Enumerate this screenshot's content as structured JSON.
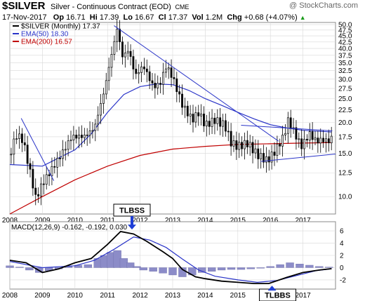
{
  "header": {
    "symbol": "$SILVER",
    "subtitle": "Silver - Continuous Contract (EOD)",
    "exchange": "CME",
    "credit": "@ StockCharts.com",
    "date": "17-Nov-2017",
    "open_label": "Op",
    "open": "16.71",
    "high_label": "Hi",
    "high": "17.39",
    "low_label": "Lo",
    "low": "16.67",
    "close_label": "Cl",
    "close": "17.37",
    "volume_label": "Vol",
    "volume": "1.2M",
    "change_label": "Chg",
    "change": "+0.68 (+4.07%)",
    "change_arrow": "▲"
  },
  "colors": {
    "price": "#000000",
    "ema50": "#2a34c8",
    "ema200": "#c00000",
    "trendline": "#2a34c8",
    "histogram": "#8c8cc8",
    "callout_box": "#ffffff",
    "callout_arrow": "#1f3fd6"
  },
  "chart_data": [
    {
      "type": "candlestick",
      "legend": [
        {
          "label": "$SILVER (Monthly) 17.37",
          "color": "#000000"
        },
        {
          "label": "EMA(50) 18.30",
          "color": "#2a34c8"
        },
        {
          "label": "EMA(200) 16.57",
          "color": "#c00000"
        }
      ],
      "legend_position": "top-left",
      "y_axis": "log",
      "ylim": [
        8.5,
        51
      ],
      "y_ticks": [
        "50.0",
        "47.5",
        "45.0",
        "42.5",
        "40.0",
        "37.5",
        "35.0",
        "32.5",
        "30.0",
        "27.5",
        "25.0",
        "22.5",
        "20.0",
        "17.5",
        "15.0",
        "12.5",
        "10.0"
      ],
      "x_ticks": [
        "2008",
        "2009",
        "2010",
        "2011",
        "2012",
        "2013",
        "2014",
        "2015",
        "2016",
        "2017"
      ],
      "xlim": [
        2008.0,
        2018.0
      ],
      "grid": true,
      "price_points": [
        {
          "x": 2008.0,
          "y": 14.8
        },
        {
          "x": 2008.2,
          "y": 17.8
        },
        {
          "x": 2008.4,
          "y": 17.0
        },
        {
          "x": 2008.6,
          "y": 13.0
        },
        {
          "x": 2008.8,
          "y": 9.8
        },
        {
          "x": 2009.0,
          "y": 11.3
        },
        {
          "x": 2009.3,
          "y": 13.0
        },
        {
          "x": 2009.6,
          "y": 15.0
        },
        {
          "x": 2009.9,
          "y": 17.5
        },
        {
          "x": 2010.3,
          "y": 17.6
        },
        {
          "x": 2010.6,
          "y": 19.0
        },
        {
          "x": 2010.9,
          "y": 27.0
        },
        {
          "x": 2011.05,
          "y": 34.0
        },
        {
          "x": 2011.3,
          "y": 48.6
        },
        {
          "x": 2011.45,
          "y": 37.0
        },
        {
          "x": 2011.65,
          "y": 39.5
        },
        {
          "x": 2011.85,
          "y": 31.0
        },
        {
          "x": 2012.1,
          "y": 34.0
        },
        {
          "x": 2012.4,
          "y": 28.0
        },
        {
          "x": 2012.6,
          "y": 28.5
        },
        {
          "x": 2012.8,
          "y": 34.0
        },
        {
          "x": 2013.0,
          "y": 30.5
        },
        {
          "x": 2013.3,
          "y": 23.5
        },
        {
          "x": 2013.6,
          "y": 20.5
        },
        {
          "x": 2013.8,
          "y": 22.0
        },
        {
          "x": 2014.0,
          "y": 19.5
        },
        {
          "x": 2014.3,
          "y": 20.5
        },
        {
          "x": 2014.6,
          "y": 19.5
        },
        {
          "x": 2014.8,
          "y": 16.5
        },
        {
          "x": 2015.0,
          "y": 16.0
        },
        {
          "x": 2015.3,
          "y": 16.5
        },
        {
          "x": 2015.6,
          "y": 14.8
        },
        {
          "x": 2015.9,
          "y": 14.0
        },
        {
          "x": 2016.1,
          "y": 15.0
        },
        {
          "x": 2016.4,
          "y": 17.5
        },
        {
          "x": 2016.55,
          "y": 20.5
        },
        {
          "x": 2016.8,
          "y": 17.5
        },
        {
          "x": 2016.95,
          "y": 16.0
        },
        {
          "x": 2017.2,
          "y": 18.0
        },
        {
          "x": 2017.4,
          "y": 16.8
        },
        {
          "x": 2017.6,
          "y": 17.0
        },
        {
          "x": 2017.8,
          "y": 16.8
        },
        {
          "x": 2017.88,
          "y": 17.37
        }
      ],
      "ema50_points": [
        {
          "x": 2008.0,
          "y": 13.5
        },
        {
          "x": 2009.0,
          "y": 13.3
        },
        {
          "x": 2010.0,
          "y": 15.5
        },
        {
          "x": 2010.5,
          "y": 18.0
        },
        {
          "x": 2011.0,
          "y": 22.0
        },
        {
          "x": 2011.5,
          "y": 26.0
        },
        {
          "x": 2012.0,
          "y": 28.0
        },
        {
          "x": 2012.5,
          "y": 28.7
        },
        {
          "x": 2013.0,
          "y": 28.5
        },
        {
          "x": 2013.5,
          "y": 27.0
        },
        {
          "x": 2014.0,
          "y": 25.0
        },
        {
          "x": 2014.5,
          "y": 23.5
        },
        {
          "x": 2015.0,
          "y": 22.0
        },
        {
          "x": 2015.5,
          "y": 20.7
        },
        {
          "x": 2016.0,
          "y": 19.6
        },
        {
          "x": 2016.5,
          "y": 19.0
        },
        {
          "x": 2017.0,
          "y": 18.6
        },
        {
          "x": 2017.88,
          "y": 18.3
        }
      ],
      "ema200_points": [
        {
          "x": 2008.0,
          "y": 8.5
        },
        {
          "x": 2009.0,
          "y": 10.0
        },
        {
          "x": 2010.0,
          "y": 11.7
        },
        {
          "x": 2011.0,
          "y": 13.3
        },
        {
          "x": 2012.0,
          "y": 14.7
        },
        {
          "x": 2013.0,
          "y": 15.6
        },
        {
          "x": 2014.0,
          "y": 16.0
        },
        {
          "x": 2015.0,
          "y": 16.3
        },
        {
          "x": 2016.0,
          "y": 16.4
        },
        {
          "x": 2017.0,
          "y": 16.5
        },
        {
          "x": 2017.88,
          "y": 16.57
        }
      ],
      "trendlines": [
        {
          "from": {
            "x": 2008.35,
            "y": 20.8
          },
          "to": {
            "x": 2009.35,
            "y": 11.6
          }
        },
        {
          "from": {
            "x": 2011.2,
            "y": 49.5
          },
          "to": {
            "x": 2016.25,
            "y": 16.8
          }
        },
        {
          "from": {
            "x": 2015.1,
            "y": 19.5
          },
          "to": {
            "x": 2017.9,
            "y": 18.5
          }
        },
        {
          "from": {
            "x": 2015.7,
            "y": 13.9
          },
          "to": {
            "x": 2018.0,
            "y": 14.9
          }
        }
      ]
    },
    {
      "type": "line",
      "title": "MACD(12,26,9) -0.162, -0.192, 0.030",
      "legend_position": "top-left",
      "ylim": [
        -3.5,
        7.5
      ],
      "y_ticks": [
        "6",
        "4",
        "2",
        "0",
        "-2"
      ],
      "x_ticks": [
        "2008",
        "2009",
        "2010",
        "2011",
        "2012",
        "2013",
        "2014",
        "2015",
        "2016",
        "2017"
      ],
      "xlim": [
        2008.0,
        2018.0
      ],
      "grid": true,
      "series": [
        {
          "points": [
            {
              "x": 2008.0,
              "y": 1.2
            },
            {
              "x": 2008.5,
              "y": 0.8
            },
            {
              "x": 2009.0,
              "y": -0.8
            },
            {
              "x": 2009.5,
              "y": -0.2
            },
            {
              "x": 2010.0,
              "y": 0.8
            },
            {
              "x": 2010.5,
              "y": 1.5
            },
            {
              "x": 2011.0,
              "y": 3.8
            },
            {
              "x": 2011.4,
              "y": 5.9
            },
            {
              "x": 2011.8,
              "y": 5.5
            },
            {
              "x": 2012.2,
              "y": 4.3
            },
            {
              "x": 2012.7,
              "y": 2.6
            },
            {
              "x": 2013.0,
              "y": 1.5
            },
            {
              "x": 2013.3,
              "y": -0.3
            },
            {
              "x": 2013.7,
              "y": -1.5
            },
            {
              "x": 2014.0,
              "y": -1.8
            },
            {
              "x": 2014.5,
              "y": -2.2
            },
            {
              "x": 2015.0,
              "y": -2.4
            },
            {
              "x": 2015.5,
              "y": -2.6
            },
            {
              "x": 2015.95,
              "y": -2.6
            },
            {
              "x": 2016.5,
              "y": -1.6
            },
            {
              "x": 2017.0,
              "y": -0.8
            },
            {
              "x": 2017.5,
              "y": -0.4
            },
            {
              "x": 2017.88,
              "y": -0.162
            }
          ]
        },
        {
          "points": [
            {
              "x": 2008.0,
              "y": 1.0
            },
            {
              "x": 2009.0,
              "y": 0.0
            },
            {
              "x": 2010.0,
              "y": 0.3
            },
            {
              "x": 2010.6,
              "y": 1.2
            },
            {
              "x": 2011.2,
              "y": 3.0
            },
            {
              "x": 2011.8,
              "y": 5.0
            },
            {
              "x": 2012.3,
              "y": 4.5
            },
            {
              "x": 2012.8,
              "y": 3.3
            },
            {
              "x": 2013.3,
              "y": 1.4
            },
            {
              "x": 2013.8,
              "y": -0.4
            },
            {
              "x": 2014.3,
              "y": -1.4
            },
            {
              "x": 2015.0,
              "y": -2.0
            },
            {
              "x": 2015.6,
              "y": -2.4
            },
            {
              "x": 2016.2,
              "y": -2.1
            },
            {
              "x": 2016.8,
              "y": -1.3
            },
            {
              "x": 2017.4,
              "y": -0.5
            },
            {
              "x": 2017.88,
              "y": -0.192
            }
          ]
        }
      ],
      "histogram": [
        {
          "x": 2008.0,
          "y": 0.3
        },
        {
          "x": 2008.3,
          "y": 0.1
        },
        {
          "x": 2008.6,
          "y": -0.4
        },
        {
          "x": 2008.9,
          "y": -0.8
        },
        {
          "x": 2009.2,
          "y": -0.5
        },
        {
          "x": 2009.5,
          "y": -0.2
        },
        {
          "x": 2009.8,
          "y": 0.3
        },
        {
          "x": 2010.1,
          "y": 0.4
        },
        {
          "x": 2010.4,
          "y": 0.5
        },
        {
          "x": 2010.7,
          "y": 1.5
        },
        {
          "x": 2010.9,
          "y": 2.0
        },
        {
          "x": 2011.1,
          "y": 2.5
        },
        {
          "x": 2011.3,
          "y": 2.8
        },
        {
          "x": 2011.5,
          "y": 1.5
        },
        {
          "x": 2011.7,
          "y": 0.8
        },
        {
          "x": 2011.9,
          "y": 0.2
        },
        {
          "x": 2012.1,
          "y": -0.4
        },
        {
          "x": 2012.4,
          "y": -0.6
        },
        {
          "x": 2012.7,
          "y": -0.9
        },
        {
          "x": 2013.0,
          "y": -1.2
        },
        {
          "x": 2013.3,
          "y": -1.5
        },
        {
          "x": 2013.6,
          "y": -1.2
        },
        {
          "x": 2013.9,
          "y": -0.8
        },
        {
          "x": 2014.2,
          "y": -0.6
        },
        {
          "x": 2014.5,
          "y": -0.4
        },
        {
          "x": 2014.8,
          "y": -0.3
        },
        {
          "x": 2015.1,
          "y": -0.3
        },
        {
          "x": 2015.4,
          "y": -0.2
        },
        {
          "x": 2015.7,
          "y": -0.1
        },
        {
          "x": 2016.0,
          "y": 0.2
        },
        {
          "x": 2016.3,
          "y": 0.5
        },
        {
          "x": 2016.6,
          "y": 0.8
        },
        {
          "x": 2016.9,
          "y": 0.6
        },
        {
          "x": 2017.2,
          "y": 0.4
        },
        {
          "x": 2017.5,
          "y": 0.2
        },
        {
          "x": 2017.8,
          "y": 0.1
        }
      ]
    }
  ],
  "annotations": [
    {
      "label": "TLBSS",
      "at": {
        "x": 2011.75,
        "y": 6.0
      }
    },
    {
      "label": "TLBBS",
      "at": {
        "x": 2016.05,
        "y": -2.6
      }
    }
  ]
}
